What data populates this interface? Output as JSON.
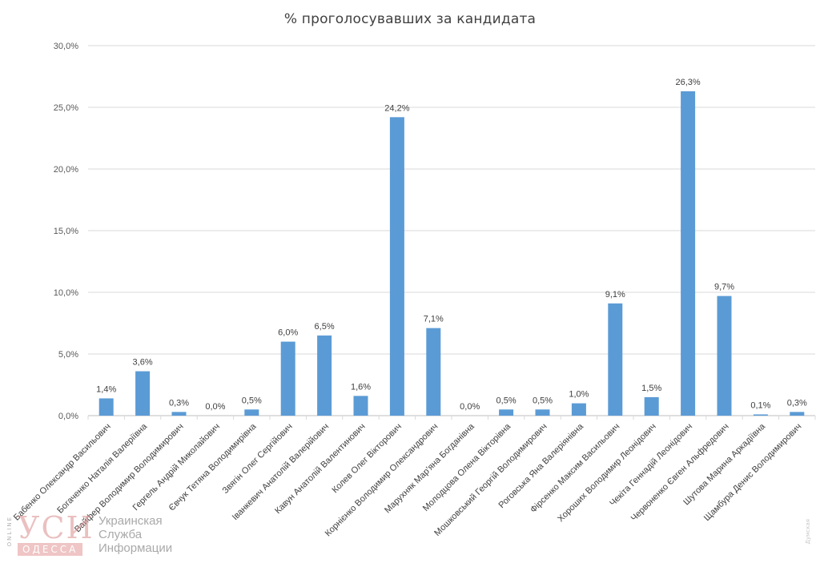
{
  "chart_data": {
    "type": "bar",
    "title": "% проголосувавших за кандидата",
    "xlabel": "",
    "ylabel": "",
    "ylim": [
      0,
      30
    ],
    "y_ticks": [
      0,
      5,
      10,
      15,
      20,
      25,
      30
    ],
    "y_tick_labels": [
      "0,0%",
      "5,0%",
      "10,0%",
      "15,0%",
      "20,0%",
      "25,0%",
      "30,0%"
    ],
    "grid": true,
    "legend": false,
    "bar_color": "#5b9bd5",
    "categories": [
      "Бабенко Олександр Васильович",
      "Богаченко Наталія Валеріївна",
      "Вайфер Володимир Володимирович",
      "Гергель Андрій Миколайович",
      "Євчук Тетяна Володимирівна",
      "Звягін Олег Сергійович",
      "Іванкевич Анатолій Валерійович",
      "Кавун Анатолій Валентинович",
      "Колев Олег Вікторович",
      "Корнієнко Володимир Олександрович",
      "Марухняк Мар'яна Богданівна",
      "Молодцова Олена Вікторівна",
      "Мошковський Георгій Володимирович",
      "Роговська Яна Валеріянівна",
      "Фірсенко Максим Васильович",
      "Хороших Володимир Леонідович",
      "Чекіта Геннадій Леонідович",
      "Червоненко Євген Альфредович",
      "Шутова Марина Аркадіївна",
      "Щамбура Денис Володимирович"
    ],
    "values": [
      1.4,
      3.6,
      0.3,
      0.0,
      0.5,
      6.0,
      6.5,
      1.6,
      24.2,
      7.1,
      0.0,
      0.5,
      0.5,
      1.0,
      9.1,
      1.5,
      26.3,
      9.7,
      0.1,
      0.3
    ],
    "data_labels": [
      "1,4%",
      "3,6%",
      "0,3%",
      "0,0%",
      "0,5%",
      "6,0%",
      "6,5%",
      "1,6%",
      "24,2%",
      "7,1%",
      "0,0%",
      "0,5%",
      "0,5%",
      "1,0%",
      "9,1%",
      "1,5%",
      "26,3%",
      "9,7%",
      "0,1%",
      "0,3%"
    ]
  },
  "watermark": {
    "online": "ONLINE",
    "logo": "УСИ",
    "city": "ОДЕССА",
    "lines": [
      "Украинская",
      "Служба",
      "Информации"
    ]
  },
  "credit": "Думская"
}
